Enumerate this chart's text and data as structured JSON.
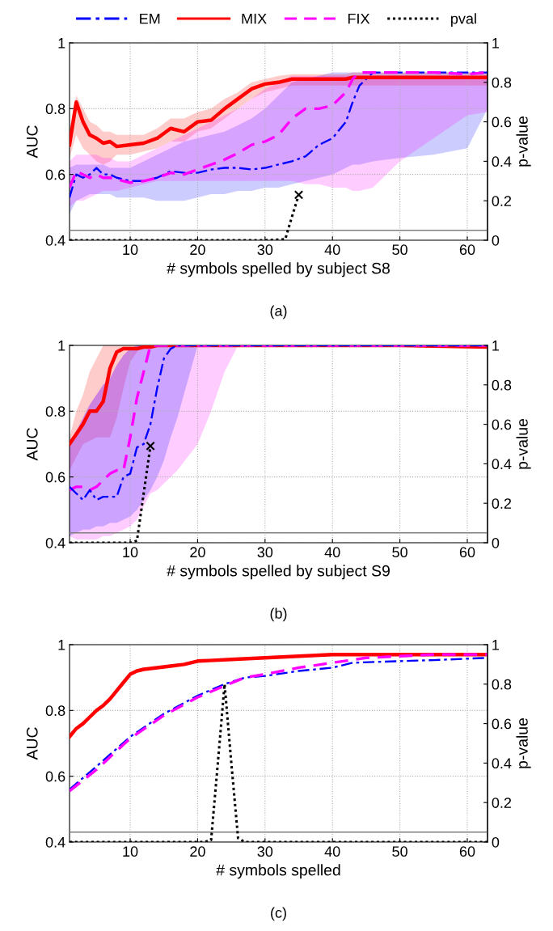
{
  "chart_data": [
    {
      "type": "line",
      "xlabel": "# symbols spelled by subject S8",
      "ylabel": "AUC",
      "y2label": "p-value",
      "annotations": [
        "(a)"
      ],
      "legend": "top",
      "grid": true,
      "xlim": [
        1,
        63
      ],
      "xticks": [
        10,
        20,
        30,
        40,
        50,
        60
      ],
      "ylim": [
        0.4,
        1
      ],
      "yticks": [
        0.4,
        0.6,
        0.8,
        1
      ],
      "y2lim": [
        0,
        1
      ],
      "y2ticks": [
        0,
        0.2,
        0.4,
        0.6,
        0.8,
        1
      ],
      "x": [
        1,
        2,
        3,
        4,
        5,
        6,
        7,
        8,
        10,
        12,
        14,
        16,
        18,
        20,
        22,
        24,
        26,
        28,
        30,
        32,
        34,
        36,
        38,
        40,
        42,
        43,
        44,
        46,
        50,
        55,
        60,
        63
      ],
      "ref_lines": [
        {
          "axis": "y2",
          "value": 0.05,
          "color": "#808080"
        }
      ],
      "series": [
        {
          "name": "EM",
          "color": "#0000ff",
          "line_style": "dashdot",
          "values": [
            0.53,
            0.6,
            0.59,
            0.6,
            0.62,
            0.6,
            0.6,
            0.59,
            0.58,
            0.58,
            0.59,
            0.61,
            0.605,
            0.605,
            0.615,
            0.62,
            0.62,
            0.615,
            0.62,
            0.63,
            0.64,
            0.655,
            0.69,
            0.71,
            0.76,
            0.82,
            0.87,
            0.91,
            0.91,
            0.91,
            0.91,
            0.91
          ],
          "lower": [
            0.48,
            0.52,
            0.53,
            0.54,
            0.54,
            0.54,
            0.54,
            0.53,
            0.53,
            0.53,
            0.52,
            0.52,
            0.52,
            0.53,
            0.54,
            0.54,
            0.55,
            0.55,
            0.56,
            0.56,
            0.57,
            0.58,
            0.59,
            0.6,
            0.62,
            0.63,
            0.63,
            0.64,
            0.65,
            0.66,
            0.68,
            0.8
          ],
          "upper": [
            0.62,
            0.63,
            0.63,
            0.63,
            0.63,
            0.63,
            0.62,
            0.62,
            0.62,
            0.64,
            0.66,
            0.68,
            0.7,
            0.71,
            0.72,
            0.73,
            0.75,
            0.77,
            0.8,
            0.84,
            0.88,
            0.89,
            0.9,
            0.91,
            0.91,
            0.91,
            0.91,
            0.91,
            0.91,
            0.91,
            0.91,
            0.91
          ]
        },
        {
          "name": "MIX",
          "color": "#ff0000",
          "line_style": "solid",
          "values": [
            0.69,
            0.82,
            0.76,
            0.72,
            0.71,
            0.695,
            0.7,
            0.685,
            0.69,
            0.695,
            0.71,
            0.74,
            0.73,
            0.76,
            0.765,
            0.8,
            0.83,
            0.86,
            0.875,
            0.88,
            0.89,
            0.89,
            0.89,
            0.89,
            0.89,
            0.895,
            0.895,
            0.895,
            0.895,
            0.895,
            0.895,
            0.895
          ],
          "lower": [
            0.65,
            0.72,
            0.68,
            0.66,
            0.64,
            0.63,
            0.64,
            0.66,
            0.66,
            0.67,
            0.68,
            0.7,
            0.7,
            0.73,
            0.74,
            0.77,
            0.8,
            0.83,
            0.85,
            0.86,
            0.87,
            0.87,
            0.87,
            0.87,
            0.87,
            0.87,
            0.87,
            0.87,
            0.87,
            0.87,
            0.87,
            0.87
          ],
          "upper": [
            0.74,
            0.84,
            0.8,
            0.76,
            0.75,
            0.73,
            0.73,
            0.72,
            0.72,
            0.72,
            0.74,
            0.77,
            0.77,
            0.79,
            0.8,
            0.83,
            0.85,
            0.88,
            0.89,
            0.9,
            0.905,
            0.905,
            0.905,
            0.905,
            0.905,
            0.91,
            0.91,
            0.91,
            0.91,
            0.91,
            0.91,
            0.91
          ]
        },
        {
          "name": "FIX",
          "color": "#ff00ff",
          "line_style": "dashed",
          "values": [
            0.56,
            0.61,
            0.6,
            0.59,
            0.6,
            0.59,
            0.59,
            0.585,
            0.575,
            0.58,
            0.59,
            0.605,
            0.6,
            0.615,
            0.63,
            0.645,
            0.665,
            0.69,
            0.7,
            0.72,
            0.77,
            0.8,
            0.8,
            0.81,
            0.85,
            0.89,
            0.91,
            0.91,
            0.91,
            0.91,
            0.905,
            0.91
          ],
          "lower": [
            0.5,
            0.52,
            0.52,
            0.53,
            0.54,
            0.55,
            0.55,
            0.55,
            0.56,
            0.57,
            0.58,
            0.58,
            0.58,
            0.58,
            0.58,
            0.58,
            0.58,
            0.58,
            0.58,
            0.58,
            0.58,
            0.57,
            0.57,
            0.56,
            0.56,
            0.55,
            0.55,
            0.56,
            0.64,
            0.71,
            0.78,
            0.79
          ],
          "upper": [
            0.64,
            0.66,
            0.66,
            0.66,
            0.66,
            0.65,
            0.65,
            0.64,
            0.64,
            0.66,
            0.68,
            0.7,
            0.72,
            0.74,
            0.76,
            0.78,
            0.8,
            0.83,
            0.86,
            0.88,
            0.9,
            0.9,
            0.9,
            0.9,
            0.9,
            0.9,
            0.9,
            0.9,
            0.9,
            0.9,
            0.9,
            0.9
          ]
        },
        {
          "name": "pval",
          "color": "#000000",
          "line_style": "dotted",
          "axis": "y2",
          "x": [
            1,
            10,
            20,
            30,
            33,
            34,
            35
          ],
          "values": [
            0,
            0,
            0,
            0,
            0.005,
            0.12,
            0.23
          ]
        },
        {
          "type": "scatter",
          "color": "#000000",
          "marker": "cross",
          "axis": "y2",
          "x": [
            35
          ],
          "values": [
            0.23
          ]
        }
      ]
    },
    {
      "type": "line",
      "xlabel": "# symbols spelled by subject S9",
      "ylabel": "AUC",
      "y2label": "p-value",
      "annotations": [
        "(b)"
      ],
      "grid": true,
      "xlim": [
        1,
        63
      ],
      "xticks": [
        10,
        20,
        30,
        40,
        50,
        60
      ],
      "ylim": [
        0.4,
        1
      ],
      "yticks": [
        0.4,
        0.6,
        0.8,
        1
      ],
      "y2lim": [
        0,
        1
      ],
      "y2ticks": [
        0,
        0.2,
        0.4,
        0.6,
        0.8,
        1
      ],
      "x": [
        1,
        2,
        3,
        4,
        5,
        6,
        7,
        8,
        9,
        10,
        11,
        12,
        13,
        14,
        15,
        16,
        17,
        20,
        22,
        24,
        26,
        30,
        40,
        50,
        63
      ],
      "ref_lines": [
        {
          "axis": "y2",
          "value": 0.05,
          "color": "#808080"
        }
      ],
      "series": [
        {
          "color": "#ff0000",
          "line_style": "solid",
          "values": [
            0.7,
            0.73,
            0.76,
            0.8,
            0.8,
            0.83,
            0.93,
            0.98,
            0.99,
            0.99,
            0.99,
            0.995,
            0.995,
            1,
            1,
            1,
            1,
            1,
            1,
            1,
            1,
            1,
            1,
            1,
            0.995
          ],
          "lower": [
            0.62,
            0.66,
            0.7,
            0.71,
            0.72,
            0.72,
            0.72,
            0.78,
            0.87,
            0.95,
            0.98,
            1,
            1,
            1,
            1,
            1,
            1,
            1,
            1,
            1,
            1,
            1,
            1,
            1,
            1
          ],
          "upper": [
            0.72,
            0.8,
            0.85,
            0.92,
            0.96,
            1,
            1,
            1,
            1,
            1,
            1,
            1,
            1,
            1,
            1,
            1,
            1,
            1,
            1,
            1,
            1,
            1,
            1,
            1,
            1
          ]
        },
        {
          "color": "#ff00ff",
          "line_style": "dashed",
          "values": [
            0.56,
            0.57,
            0.57,
            0.56,
            0.57,
            0.59,
            0.61,
            0.62,
            0.62,
            0.72,
            0.84,
            0.92,
            1,
            1,
            1,
            1,
            1,
            1,
            1,
            1,
            1,
            1,
            1,
            1,
            1
          ],
          "lower": [
            0.42,
            0.41,
            0.41,
            0.41,
            0.41,
            0.42,
            0.42,
            0.43,
            0.44,
            0.45,
            0.47,
            0.51,
            0.55,
            0.56,
            0.58,
            0.6,
            0.62,
            0.7,
            0.8,
            0.92,
            1,
            1,
            1,
            1,
            1
          ],
          "upper": [
            0.7,
            0.74,
            0.78,
            0.82,
            0.85,
            0.88,
            0.9,
            0.94,
            0.97,
            0.99,
            1,
            1,
            1,
            1,
            1,
            1,
            1,
            1,
            1,
            1,
            1,
            1,
            1,
            1,
            1
          ]
        },
        {
          "color": "#0000ff",
          "line_style": "dashdot",
          "values": [
            0.57,
            0.55,
            0.53,
            0.56,
            0.53,
            0.54,
            0.54,
            0.54,
            0.6,
            0.61,
            0.69,
            0.7,
            0.76,
            0.87,
            0.96,
            0.99,
            1,
            1,
            1,
            1,
            1,
            1,
            1,
            1,
            1
          ],
          "lower": [
            0.42,
            0.43,
            0.44,
            0.44,
            0.45,
            0.45,
            0.46,
            0.46,
            0.47,
            0.48,
            0.5,
            0.53,
            0.56,
            0.6,
            0.65,
            0.72,
            0.78,
            1,
            1,
            1,
            1,
            1,
            1,
            1,
            1
          ],
          "upper": [
            0.7,
            0.74,
            0.78,
            0.82,
            0.85,
            0.88,
            0.9,
            0.94,
            0.97,
            0.99,
            1,
            1,
            1,
            1,
            1,
            1,
            1,
            1,
            1,
            1,
            1,
            1,
            1,
            1,
            1
          ]
        },
        {
          "color": "#000000",
          "line_style": "dotted",
          "axis": "y2",
          "x": [
            1,
            5,
            10,
            11,
            12,
            13
          ],
          "values": [
            0,
            0,
            0,
            0.01,
            0.25,
            0.49
          ]
        },
        {
          "type": "scatter",
          "color": "#000000",
          "marker": "cross",
          "axis": "y2",
          "x": [
            13
          ],
          "values": [
            0.49
          ]
        }
      ]
    },
    {
      "type": "line",
      "xlabel": "# symbols spelled",
      "ylabel": "AUC",
      "y2label": "p-value",
      "annotations": [
        "(c)"
      ],
      "grid": true,
      "xlim": [
        1,
        63
      ],
      "xticks": [
        10,
        20,
        30,
        40,
        50,
        60
      ],
      "ylim": [
        0.4,
        1
      ],
      "yticks": [
        0.4,
        0.6,
        0.8,
        1
      ],
      "y2lim": [
        0,
        1
      ],
      "y2ticks": [
        0,
        0.2,
        0.4,
        0.6,
        0.8,
        1
      ],
      "ref_lines": [
        {
          "axis": "y2",
          "value": 0.05,
          "color": "#808080"
        }
      ],
      "series": [
        {
          "color": "#0000ff",
          "line_style": "dashdot",
          "x": [
            1,
            5,
            10,
            15,
            20,
            24,
            27,
            30,
            35,
            40,
            43,
            50,
            55,
            63
          ],
          "values": [
            0.56,
            0.63,
            0.72,
            0.79,
            0.845,
            0.88,
            0.9,
            0.905,
            0.92,
            0.93,
            0.945,
            0.95,
            0.953,
            0.96
          ]
        },
        {
          "color": "#ff0000",
          "line_style": "solid",
          "x": [
            1,
            2,
            3,
            4,
            5,
            6,
            7,
            8,
            9,
            10,
            11,
            12,
            14,
            16,
            18,
            20,
            25,
            30,
            35,
            40,
            50,
            63
          ],
          "values": [
            0.72,
            0.745,
            0.76,
            0.78,
            0.8,
            0.815,
            0.835,
            0.86,
            0.885,
            0.91,
            0.92,
            0.925,
            0.93,
            0.935,
            0.94,
            0.95,
            0.955,
            0.96,
            0.965,
            0.97,
            0.97,
            0.97
          ]
        },
        {
          "color": "#ff00ff",
          "line_style": "dashed",
          "x": [
            1,
            5,
            10,
            15,
            20,
            24,
            27,
            30,
            35,
            40,
            45,
            50,
            55,
            63
          ],
          "values": [
            0.555,
            0.62,
            0.715,
            0.785,
            0.84,
            0.875,
            0.9,
            0.91,
            0.93,
            0.945,
            0.96,
            0.965,
            0.97,
            0.97
          ]
        },
        {
          "color": "#000000",
          "line_style": "dotted",
          "axis": "y2",
          "x": [
            1,
            20,
            21,
            22,
            23,
            24,
            25,
            26,
            27,
            63
          ],
          "values": [
            0,
            0,
            0,
            0.01,
            0.4,
            0.8,
            0.4,
            0.02,
            0,
            0
          ]
        }
      ]
    }
  ]
}
